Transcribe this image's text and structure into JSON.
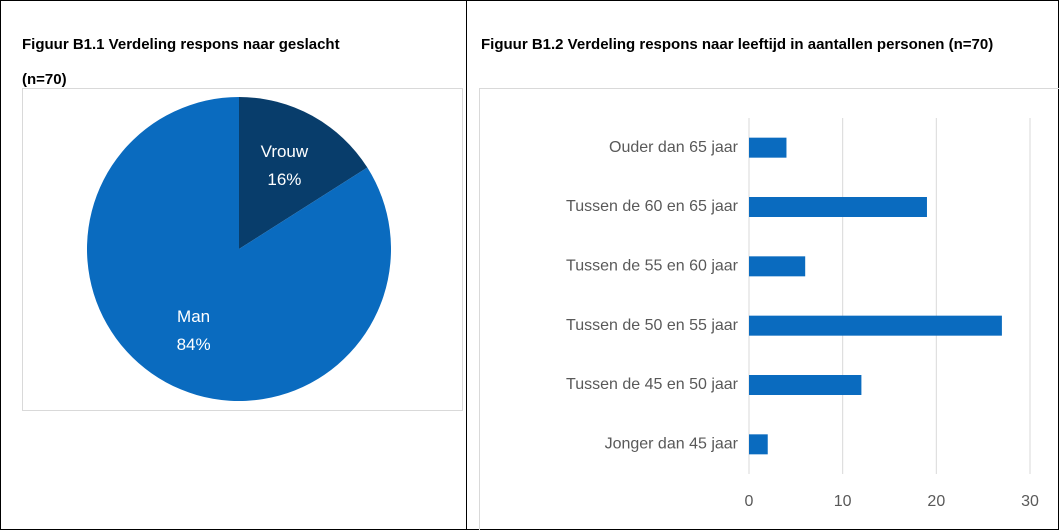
{
  "chart_data": [
    {
      "type": "pie",
      "title": "Figuur B1.1 Verdeling respons naar geslacht (n=70)",
      "categories": [
        "Vrouw",
        "Man"
      ],
      "values": [
        16,
        84
      ],
      "value_labels": [
        "16%",
        "84%"
      ],
      "colors": [
        "#083d6b",
        "#0a6bbf"
      ]
    },
    {
      "type": "hbar",
      "title": "Figuur B1.2 Verdeling respons naar leeftijd in aantallen personen (n=70)",
      "categories": [
        "Ouder dan 65 jaar",
        "Tussen de 60 en 65 jaar",
        "Tussen de 55 en 60 jaar",
        "Tussen de 50 en 55 jaar",
        "Tussen de 45 en 50 jaar",
        "Jonger dan 45 jaar"
      ],
      "values": [
        4,
        19,
        6,
        27,
        12,
        2
      ],
      "color": "#0a6bbf",
      "xlim": [
        0,
        30
      ],
      "xticks": [
        0,
        10,
        20,
        30
      ],
      "grid": true
    }
  ]
}
